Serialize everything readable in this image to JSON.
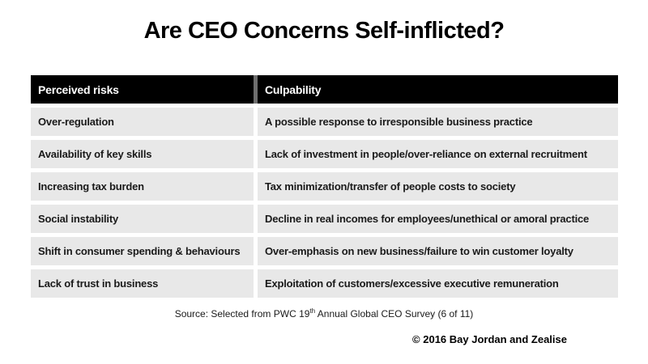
{
  "title": "Are CEO Concerns Self-inflicted?",
  "table": {
    "headers": [
      "Perceived risks",
      "Culpability"
    ],
    "rows": [
      [
        "Over-regulation",
        "A possible response to irresponsible business practice"
      ],
      [
        "Availability of key skills",
        "Lack of investment in people/over-reliance on external recruitment"
      ],
      [
        "Increasing tax burden",
        "Tax minimization/transfer of people costs to society"
      ],
      [
        "Social instability",
        "Decline in real incomes for employees/unethical or amoral practice"
      ],
      [
        "Shift in consumer spending & behaviours",
        "Over-emphasis on new business/failure to win customer loyalty"
      ],
      [
        "Lack of trust in business",
        "Exploitation of customers/excessive executive remuneration"
      ]
    ]
  },
  "source": {
    "prefix": "Source: Selected from PWC 19",
    "sup": "th",
    "suffix": " Annual Global CEO Survey (6 of 11)"
  },
  "copyright": "© 2016 Bay Jordan and Zealise",
  "colors": {
    "header_bg": "#000000",
    "header_text": "#ffffff",
    "row_bg": "#e8e8e8",
    "body_text": "#1a1a1a",
    "slide_bg": "#ffffff"
  }
}
